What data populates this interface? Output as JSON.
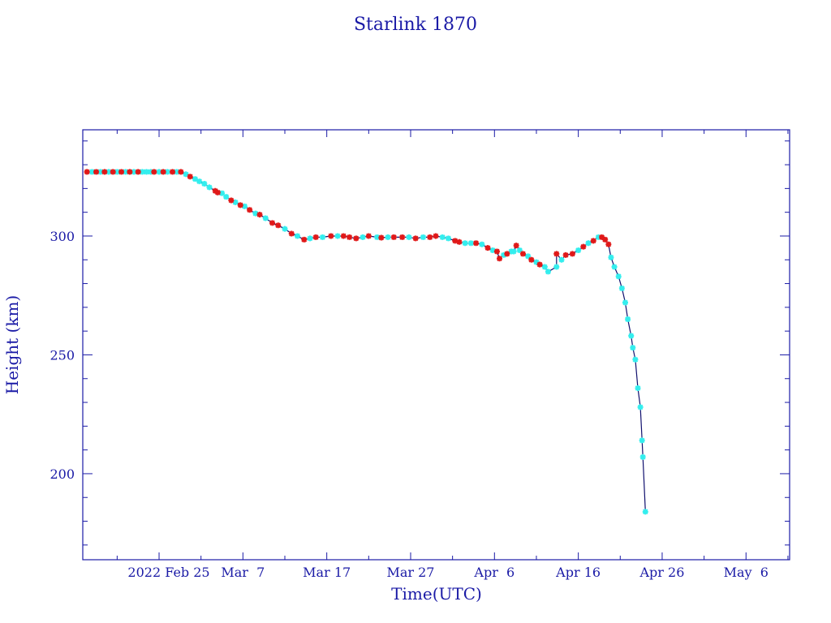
{
  "chart_data": {
    "type": "line",
    "title": "Starlink 1870",
    "xlabel": "Time(UTC)",
    "ylabel": "Height (km)",
    "x_unit": "days since 2022 Feb 25",
    "xlim": [
      -9.1,
      75.2
    ],
    "ylim": [
      163.8,
      344.7
    ],
    "x_ticks": [
      {
        "day": 0,
        "label": "2022 Feb 25"
      },
      {
        "day": 10,
        "label": "Mar  7"
      },
      {
        "day": 20,
        "label": "Mar 17"
      },
      {
        "day": 30,
        "label": "Mar 27"
      },
      {
        "day": 40,
        "label": "Apr  6"
      },
      {
        "day": 50,
        "label": "Apr 16"
      },
      {
        "day": 60,
        "label": "Apr 26"
      },
      {
        "day": 70,
        "label": "May  6"
      }
    ],
    "y_ticks": [
      {
        "value": 200,
        "label": "200"
      },
      {
        "value": 250,
        "label": "250"
      },
      {
        "value": 300,
        "label": "300"
      }
    ],
    "grid": false,
    "colors": {
      "axis": "#1a1aa6",
      "line": "#10106e",
      "red": "#e01818",
      "cyan": "#33eeee"
    },
    "points": [
      [
        -8.6,
        327,
        "r"
      ],
      [
        -8.0,
        327,
        "c"
      ],
      [
        -7.5,
        327,
        "r"
      ],
      [
        -7.0,
        327,
        "c"
      ],
      [
        -6.5,
        327,
        "r"
      ],
      [
        -6.0,
        327,
        "c"
      ],
      [
        -5.5,
        327,
        "r"
      ],
      [
        -5.0,
        327,
        "c"
      ],
      [
        -4.5,
        327,
        "r"
      ],
      [
        -4.0,
        327,
        "c"
      ],
      [
        -3.5,
        327,
        "r"
      ],
      [
        -3.0,
        327,
        "c"
      ],
      [
        -2.5,
        327,
        "r"
      ],
      [
        -2.0,
        327,
        "c"
      ],
      [
        -1.5,
        327,
        "c"
      ],
      [
        -1.0,
        327,
        "c"
      ],
      [
        -0.6,
        327,
        "r"
      ],
      [
        0.0,
        327,
        "c"
      ],
      [
        0.5,
        327,
        "r"
      ],
      [
        1.0,
        327,
        "c"
      ],
      [
        1.6,
        327,
        "r"
      ],
      [
        2.1,
        327,
        "c"
      ],
      [
        2.6,
        327,
        "r"
      ],
      [
        3.2,
        326,
        "c"
      ],
      [
        3.7,
        325,
        "r"
      ],
      [
        4.3,
        324,
        "c"
      ],
      [
        4.8,
        323,
        "c"
      ],
      [
        5.4,
        322,
        "c"
      ],
      [
        6.0,
        320.5,
        "c"
      ],
      [
        6.7,
        319,
        "r"
      ],
      [
        7.0,
        318.3,
        "r"
      ],
      [
        7.5,
        318,
        "c"
      ],
      [
        8.0,
        316.5,
        "c"
      ],
      [
        8.6,
        315,
        "r"
      ],
      [
        9.1,
        314.2,
        "c"
      ],
      [
        9.7,
        313,
        "r"
      ],
      [
        10.2,
        312.5,
        "c"
      ],
      [
        10.8,
        311,
        "r"
      ],
      [
        11.5,
        309.5,
        "c"
      ],
      [
        12.0,
        309,
        "r"
      ],
      [
        12.7,
        307.5,
        "c"
      ],
      [
        13.5,
        305.5,
        "r"
      ],
      [
        14.2,
        304.5,
        "r"
      ],
      [
        15.0,
        303,
        "c"
      ],
      [
        15.8,
        301,
        "r"
      ],
      [
        16.5,
        300,
        "c"
      ],
      [
        17.3,
        298.5,
        "r"
      ],
      [
        18.0,
        299,
        "c"
      ],
      [
        18.7,
        299.5,
        "r"
      ],
      [
        19.5,
        299.5,
        "c"
      ],
      [
        20.5,
        300,
        "r"
      ],
      [
        21.3,
        300,
        "c"
      ],
      [
        22.0,
        300,
        "r"
      ],
      [
        22.7,
        299.5,
        "r"
      ],
      [
        23.5,
        299,
        "r"
      ],
      [
        24.3,
        299.5,
        "c"
      ],
      [
        25.0,
        300,
        "r"
      ],
      [
        26.0,
        299.5,
        "c"
      ],
      [
        26.5,
        299.3,
        "r"
      ],
      [
        27.3,
        299.5,
        "c"
      ],
      [
        28.0,
        299.5,
        "r"
      ],
      [
        29.0,
        299.5,
        "r"
      ],
      [
        29.8,
        299.5,
        "c"
      ],
      [
        30.6,
        299,
        "r"
      ],
      [
        31.5,
        299.5,
        "c"
      ],
      [
        32.3,
        299.5,
        "r"
      ],
      [
        33.0,
        300,
        "r"
      ],
      [
        33.8,
        299.5,
        "c"
      ],
      [
        34.5,
        299,
        "c"
      ],
      [
        35.3,
        298,
        "r"
      ],
      [
        35.8,
        297.5,
        "r"
      ],
      [
        36.5,
        297,
        "c"
      ],
      [
        37.2,
        297,
        "c"
      ],
      [
        37.8,
        297,
        "r"
      ],
      [
        38.5,
        296.5,
        "c"
      ],
      [
        39.2,
        295,
        "r"
      ],
      [
        39.8,
        294,
        "c"
      ],
      [
        40.3,
        293.5,
        "r"
      ],
      [
        40.6,
        290.5,
        "r"
      ],
      [
        41.1,
        292,
        "c"
      ],
      [
        41.5,
        292.5,
        "r"
      ],
      [
        42.0,
        293.5,
        "c"
      ],
      [
        42.3,
        293.5,
        "c"
      ],
      [
        42.6,
        296,
        "r"
      ],
      [
        43.0,
        294,
        "c"
      ],
      [
        43.4,
        292.5,
        "r"
      ],
      [
        44.0,
        291.5,
        "c"
      ],
      [
        44.4,
        290,
        "r"
      ],
      [
        45.0,
        289,
        "c"
      ],
      [
        45.4,
        288,
        "r"
      ],
      [
        46.0,
        287,
        "c"
      ],
      [
        46.4,
        285,
        "c"
      ],
      [
        47.4,
        287,
        "c"
      ],
      [
        47.4,
        292.5,
        "r"
      ],
      [
        48.0,
        290,
        "c"
      ],
      [
        48.5,
        292,
        "r"
      ],
      [
        49.3,
        292.5,
        "r"
      ],
      [
        50.0,
        294,
        "c"
      ],
      [
        50.6,
        295.5,
        "r"
      ],
      [
        51.2,
        297,
        "c"
      ],
      [
        51.8,
        298,
        "r"
      ],
      [
        52.4,
        299.5,
        "c"
      ],
      [
        52.8,
        299.5,
        "r"
      ],
      [
        53.2,
        298.5,
        "r"
      ],
      [
        53.6,
        296.5,
        "r"
      ],
      [
        53.9,
        291,
        "c"
      ],
      [
        54.3,
        287,
        "c"
      ],
      [
        54.8,
        283,
        "c"
      ],
      [
        55.2,
        278,
        "c"
      ],
      [
        55.6,
        272,
        "c"
      ],
      [
        55.9,
        265,
        "c"
      ],
      [
        56.3,
        258,
        "c"
      ],
      [
        56.5,
        253,
        "c"
      ],
      [
        56.8,
        248,
        "c"
      ],
      [
        57.1,
        236,
        "c"
      ],
      [
        57.4,
        228,
        "c"
      ],
      [
        57.6,
        214,
        "c"
      ],
      [
        57.7,
        207,
        "c"
      ],
      [
        58.0,
        184,
        "c"
      ]
    ]
  }
}
